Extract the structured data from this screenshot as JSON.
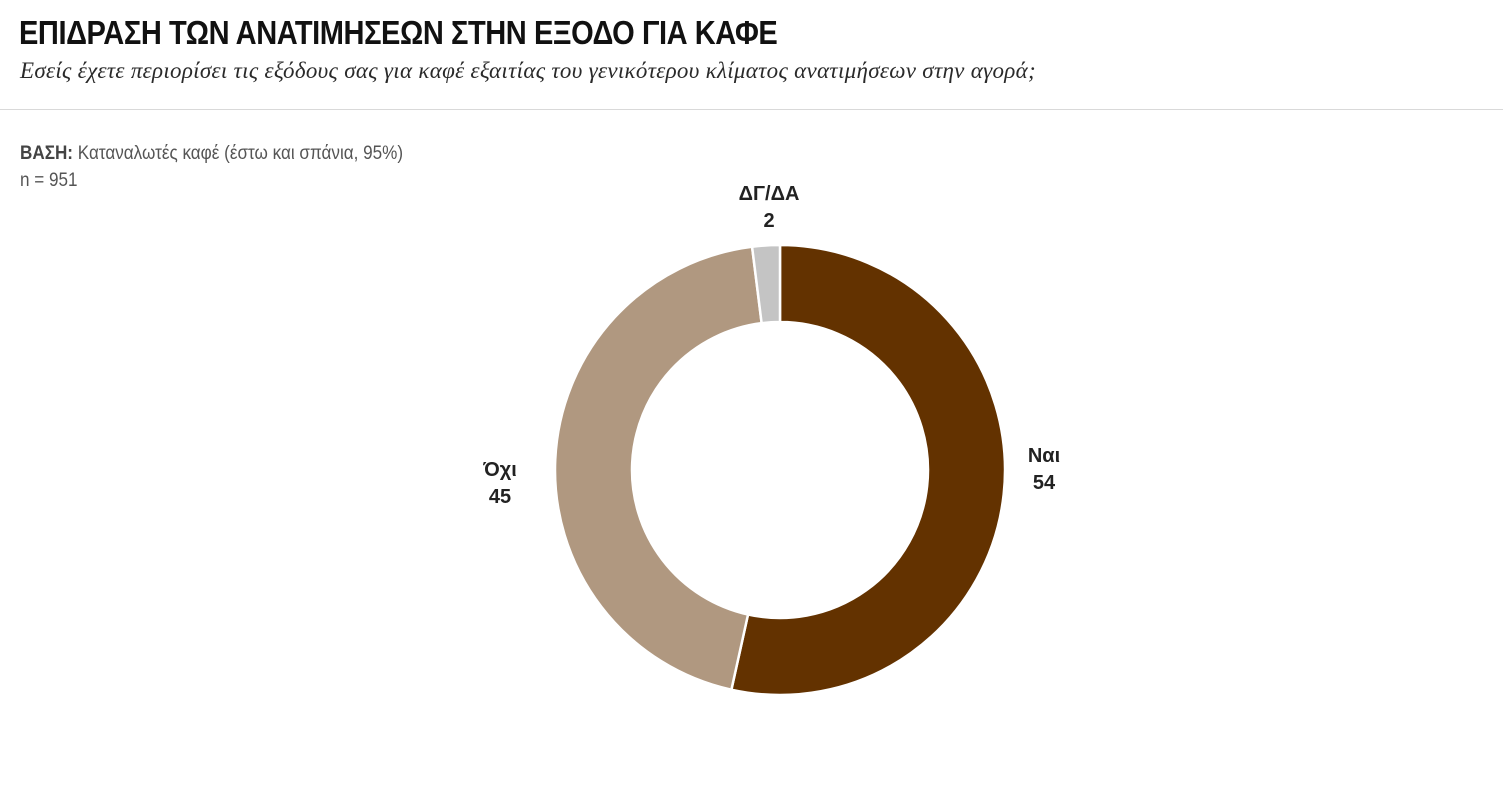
{
  "header": {
    "title": "ΕΠΙΔΡΑΣΗ ΤΩΝ ΑΝΑΤΙΜΗΣΕΩΝ ΣΤΗΝ ΕΞΟΔΟ ΓΙΑ ΚΑΦΕ",
    "subtitle": "Εσείς έχετε περιορίσει τις εξόδους σας για καφέ εξαιτίας του γενικότερου κλίματος ανατιμήσεων στην αγορά;"
  },
  "base": {
    "label": "ΒΑΣΗ:",
    "text": "Καταναλωτές καφέ (έστω και σπάνια, 95%)",
    "n": "n = 951"
  },
  "chart_data": {
    "type": "pie",
    "donut": true,
    "title": "ΕΠΙΔΡΑΣΗ ΤΩΝ ΑΝΑΤΙΜΗΣΕΩΝ ΣΤΗΝ ΕΞΟΔΟ ΓΙΑ ΚΑΦΕ",
    "categories": [
      "Ναι",
      "Όχι",
      "ΔΓ/ΔΑ"
    ],
    "values": [
      54,
      45,
      2
    ],
    "colors": [
      "#633200",
      "#b09880",
      "#c4c4c4"
    ],
    "start_angle": "12 o'clock",
    "direction": "clockwise",
    "legend": "none"
  }
}
